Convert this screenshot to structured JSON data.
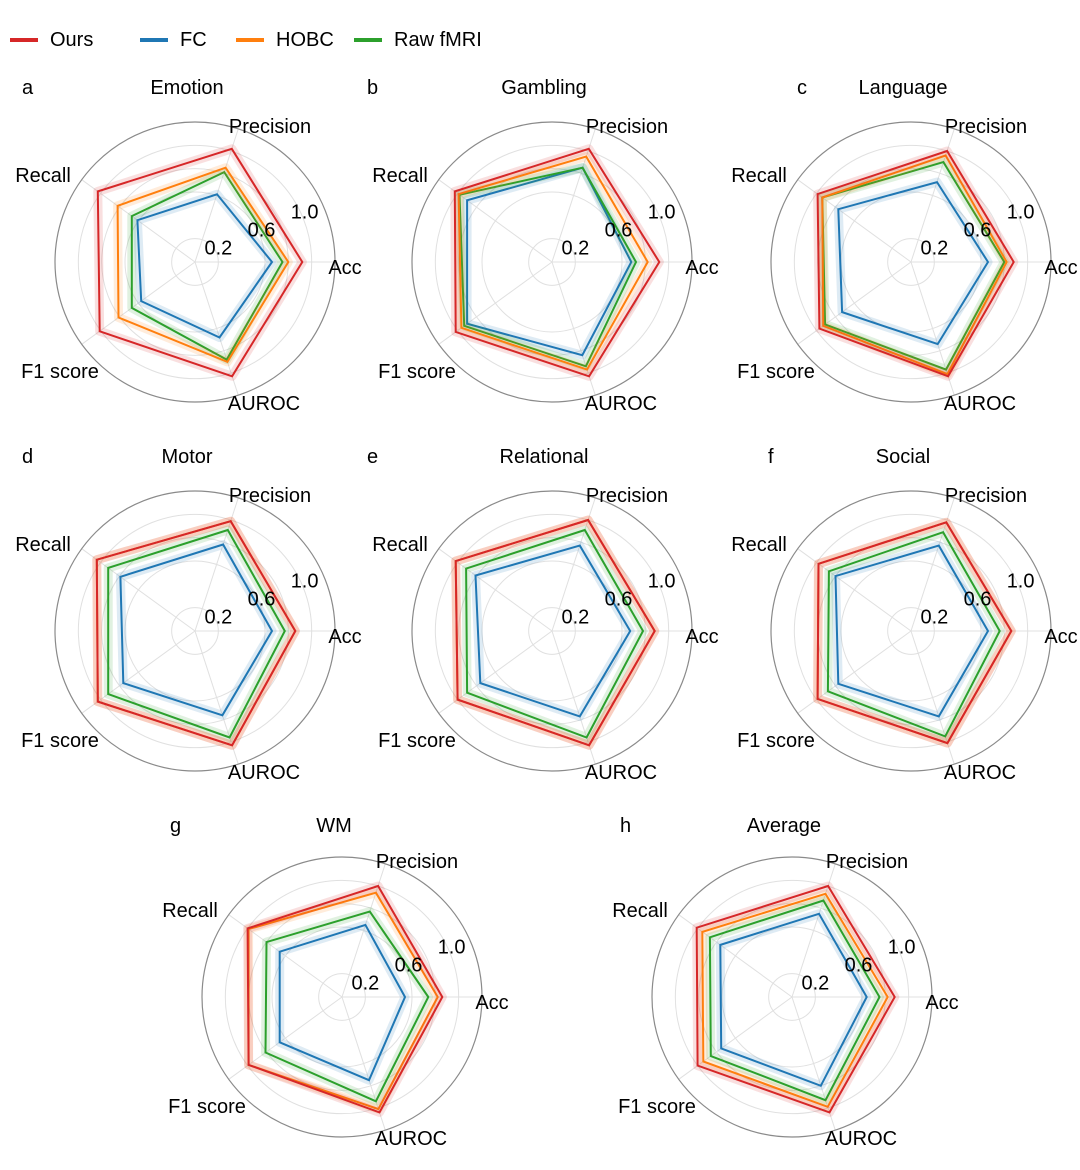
{
  "legend": [
    {
      "name": "Ours",
      "color": "#d62728"
    },
    {
      "name": "FC",
      "color": "#1f77b4"
    },
    {
      "name": "HOBC",
      "color": "#ff7f0e"
    },
    {
      "name": "Raw fMRI",
      "color": "#2ca02c"
    }
  ],
  "chart_data": [
    {
      "type": "radar",
      "letter": "a",
      "title": "Emotion",
      "axes": [
        "Acc",
        "Precision",
        "Recall",
        "F1 score",
        "AUROC"
      ],
      "rticks": [
        "0.2",
        "0.6",
        "1.0"
      ],
      "rlim": [
        0,
        1.2
      ],
      "series": [
        {
          "name": "Ours",
          "values": [
            0.92,
            1.02,
            1.03,
            1.01,
            1.03
          ]
        },
        {
          "name": "FC",
          "values": [
            0.66,
            0.61,
            0.61,
            0.57,
            0.68
          ]
        },
        {
          "name": "HOBC",
          "values": [
            0.8,
            0.85,
            0.82,
            0.81,
            0.9
          ]
        },
        {
          "name": "Raw fMRI",
          "values": [
            0.75,
            0.81,
            0.67,
            0.67,
            0.88
          ]
        }
      ]
    },
    {
      "type": "radar",
      "letter": "b",
      "title": "Gambling",
      "axes": [
        "Acc",
        "Precision",
        "Recall",
        "F1 score",
        "AUROC"
      ],
      "rticks": [
        "0.2",
        "0.6",
        "1.0"
      ],
      "rlim": [
        0,
        1.2
      ],
      "series": [
        {
          "name": "Ours",
          "values": [
            0.92,
            1.02,
            1.03,
            1.02,
            1.03
          ]
        },
        {
          "name": "FC",
          "values": [
            0.68,
            0.85,
            0.9,
            0.9,
            0.84
          ]
        },
        {
          "name": "HOBC",
          "values": [
            0.82,
            0.95,
            0.99,
            0.96,
            0.97
          ]
        },
        {
          "name": "Raw fMRI",
          "values": [
            0.72,
            0.85,
            0.98,
            0.93,
            0.94
          ]
        }
      ]
    },
    {
      "type": "radar",
      "letter": "c",
      "title": "Language",
      "axes": [
        "Acc",
        "Precision",
        "Recall",
        "F1 score",
        "AUROC"
      ],
      "rticks": [
        "0.2",
        "0.6",
        "1.0"
      ],
      "rlim": [
        0,
        1.2
      ],
      "series": [
        {
          "name": "Ours",
          "values": [
            0.88,
            1.0,
            0.99,
            0.97,
            1.03
          ]
        },
        {
          "name": "FC",
          "values": [
            0.66,
            0.72,
            0.77,
            0.73,
            0.74
          ]
        },
        {
          "name": "HOBC",
          "values": [
            0.82,
            0.96,
            0.94,
            0.93,
            1.01
          ]
        },
        {
          "name": "Raw fMRI",
          "values": [
            0.8,
            0.9,
            0.94,
            0.91,
            0.97
          ]
        }
      ]
    },
    {
      "type": "radar",
      "letter": "d",
      "title": "Motor",
      "axes": [
        "Acc",
        "Precision",
        "Recall",
        "F1 score",
        "AUROC"
      ],
      "rticks": [
        "0.2",
        "0.6",
        "1.0"
      ],
      "rlim": [
        0,
        1.2
      ],
      "series": [
        {
          "name": "Ours",
          "values": [
            0.86,
            0.99,
            1.04,
            1.03,
            1.03
          ]
        },
        {
          "name": "FC",
          "values": [
            0.66,
            0.78,
            0.79,
            0.76,
            0.76
          ]
        },
        {
          "name": "HOBC",
          "values": [
            0.86,
            0.99,
            1.04,
            1.03,
            1.03
          ]
        },
        {
          "name": "Raw fMRI",
          "values": [
            0.77,
            0.91,
            0.92,
            0.92,
            0.96
          ]
        }
      ]
    },
    {
      "type": "radar",
      "letter": "e",
      "title": "Relational",
      "axes": [
        "Acc",
        "Precision",
        "Recall",
        "F1 score",
        "AUROC"
      ],
      "rticks": [
        "0.2",
        "0.6",
        "1.0"
      ],
      "rlim": [
        0,
        1.2
      ],
      "series": [
        {
          "name": "Ours",
          "values": [
            0.88,
            1.0,
            1.02,
            1.0,
            1.03
          ]
        },
        {
          "name": "FC",
          "values": [
            0.67,
            0.77,
            0.81,
            0.76,
            0.77
          ]
        },
        {
          "name": "HOBC",
          "values": [
            0.88,
            1.0,
            1.02,
            1.0,
            1.03
          ]
        },
        {
          "name": "Raw fMRI",
          "values": [
            0.78,
            0.91,
            0.91,
            0.9,
            0.96
          ]
        }
      ]
    },
    {
      "type": "radar",
      "letter": "f",
      "title": "Social",
      "axes": [
        "Acc",
        "Precision",
        "Recall",
        "F1 score",
        "AUROC"
      ],
      "rticks": [
        "0.2",
        "0.6",
        "1.0"
      ],
      "rlim": [
        0,
        1.2
      ],
      "series": [
        {
          "name": "Ours",
          "values": [
            0.86,
            0.98,
            0.98,
            0.99,
            1.01
          ]
        },
        {
          "name": "FC",
          "values": [
            0.66,
            0.77,
            0.8,
            0.77,
            0.77
          ]
        },
        {
          "name": "HOBC",
          "values": [
            0.86,
            0.98,
            0.98,
            0.99,
            1.01
          ]
        },
        {
          "name": "Raw fMRI",
          "values": [
            0.76,
            0.89,
            0.87,
            0.88,
            0.95
          ]
        }
      ]
    },
    {
      "type": "radar",
      "letter": "g",
      "title": "WM",
      "axes": [
        "Acc",
        "Precision",
        "Recall",
        "F1 score",
        "AUROC"
      ],
      "rticks": [
        "0.2",
        "0.6",
        "1.0"
      ],
      "rlim": [
        0,
        1.2
      ],
      "series": [
        {
          "name": "Ours",
          "values": [
            0.86,
            1.0,
            1.0,
            0.99,
            1.04
          ]
        },
        {
          "name": "FC",
          "values": [
            0.54,
            0.65,
            0.66,
            0.66,
            0.75
          ]
        },
        {
          "name": "HOBC",
          "values": [
            0.82,
            0.94,
            0.99,
            0.99,
            1.01
          ]
        },
        {
          "name": "Raw fMRI",
          "values": [
            0.74,
            0.77,
            0.8,
            0.81,
            0.94
          ]
        }
      ]
    },
    {
      "type": "radar",
      "letter": "h",
      "title": "Average",
      "axes": [
        "Acc",
        "Precision",
        "Recall",
        "F1 score",
        "AUROC"
      ],
      "rticks": [
        "0.2",
        "0.6",
        "1.0"
      ],
      "rlim": [
        0,
        1.2
      ],
      "series": [
        {
          "name": "Ours",
          "values": [
            0.88,
            1.0,
            1.01,
            1.0,
            1.04
          ]
        },
        {
          "name": "FC",
          "values": [
            0.64,
            0.75,
            0.76,
            0.75,
            0.8
          ]
        },
        {
          "name": "HOBC",
          "values": [
            0.82,
            0.93,
            0.95,
            0.94,
            0.99
          ]
        },
        {
          "name": "Raw fMRI",
          "values": [
            0.75,
            0.87,
            0.87,
            0.86,
            0.93
          ]
        }
      ]
    }
  ]
}
